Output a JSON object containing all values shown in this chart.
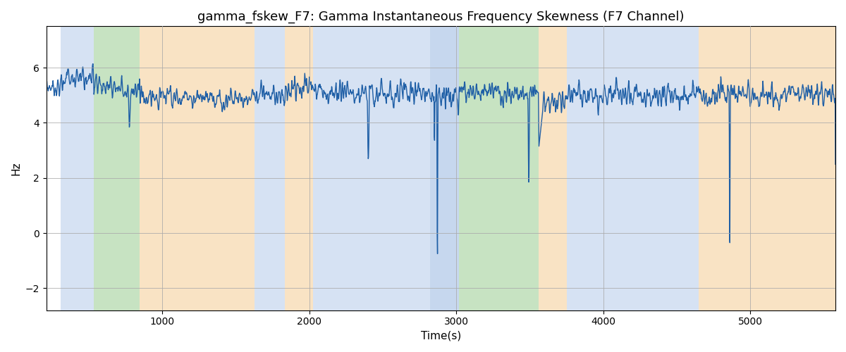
{
  "title": "gamma_fskew_F7: Gamma Instantaneous Frequency Skewness (F7 Channel)",
  "xlabel": "Time(s)",
  "ylabel": "Hz",
  "xlim": [
    210,
    5580
  ],
  "ylim": [
    -2.8,
    7.5
  ],
  "line_color": "#1f5fa6",
  "line_width": 1.0,
  "bg_color": "#ffffff",
  "grid_color": "#aaaaaa",
  "bands": [
    {
      "xmin": 310,
      "xmax": 535,
      "color": "#aec6e8",
      "alpha": 0.5
    },
    {
      "xmin": 535,
      "xmax": 845,
      "color": "#90c987",
      "alpha": 0.5
    },
    {
      "xmin": 845,
      "xmax": 1625,
      "color": "#f5c98a",
      "alpha": 0.5
    },
    {
      "xmin": 1625,
      "xmax": 1835,
      "color": "#aec6e8",
      "alpha": 0.5
    },
    {
      "xmin": 1835,
      "xmax": 2025,
      "color": "#f5c98a",
      "alpha": 0.5
    },
    {
      "xmin": 2025,
      "xmax": 2820,
      "color": "#aec6e8",
      "alpha": 0.5
    },
    {
      "xmin": 2820,
      "xmax": 3020,
      "color": "#aec6e8",
      "alpha": 0.7
    },
    {
      "xmin": 3020,
      "xmax": 3560,
      "color": "#90c987",
      "alpha": 0.5
    },
    {
      "xmin": 3560,
      "xmax": 3750,
      "color": "#f5c98a",
      "alpha": 0.5
    },
    {
      "xmin": 3750,
      "xmax": 4650,
      "color": "#aec6e8",
      "alpha": 0.5
    },
    {
      "xmin": 4650,
      "xmax": 5580,
      "color": "#f5c98a",
      "alpha": 0.5
    }
  ],
  "title_fontsize": 13,
  "tick_fontsize": 10,
  "label_fontsize": 11,
  "yticks": [
    -2,
    0,
    2,
    4,
    6
  ],
  "xticks": [
    1000,
    2000,
    3000,
    4000,
    5000
  ]
}
